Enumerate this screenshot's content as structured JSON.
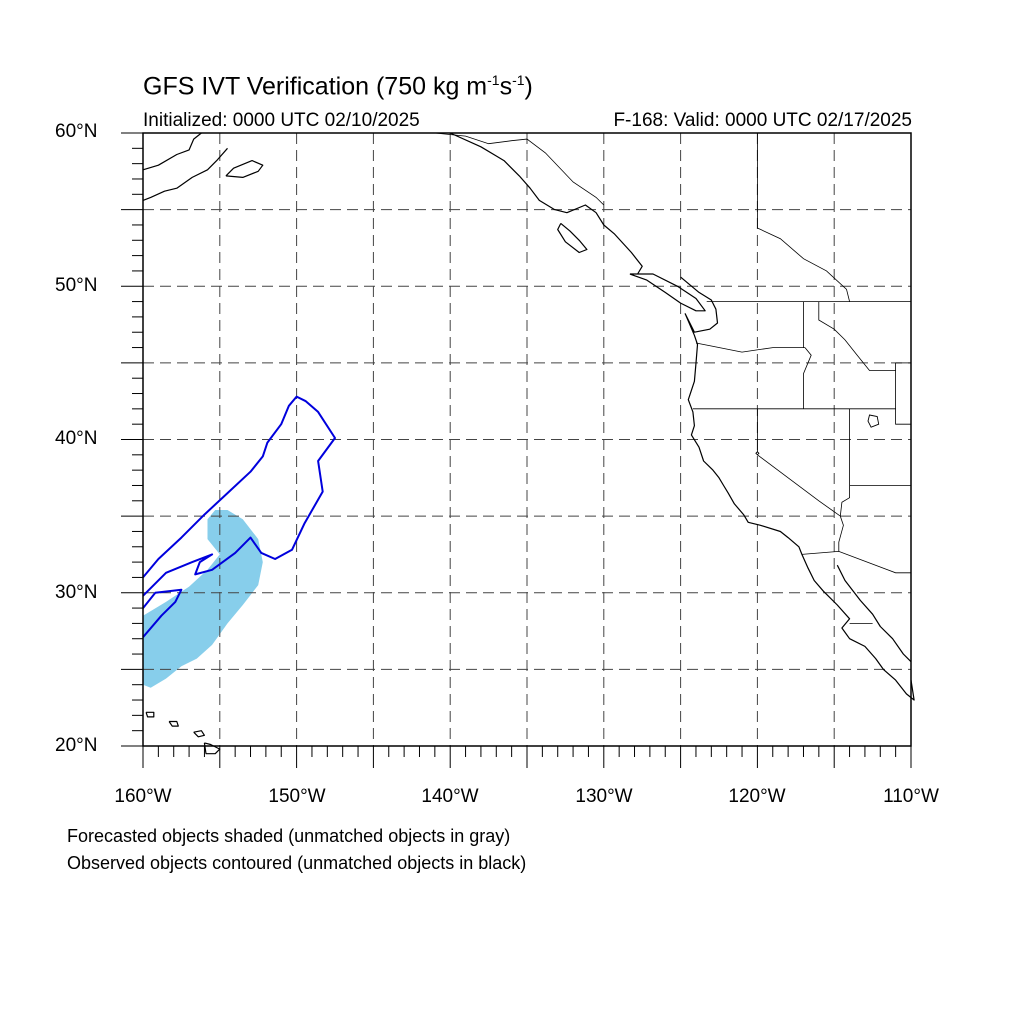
{
  "title": {
    "main": "GFS IVT Verification (750 kg m",
    "exp1": "-1",
    "mid": "s",
    "exp2": "-1",
    "end": ")"
  },
  "subtitle_left": "Initialized: 0000 UTC 02/10/2025",
  "subtitle_right": "F-168: Valid: 0000 UTC 02/17/2025",
  "lat_labels": [
    "60°N",
    "50°N",
    "40°N",
    "30°N",
    "20°N"
  ],
  "lon_labels": [
    "160°W",
    "150°W",
    "140°W",
    "130°W",
    "120°W",
    "110°W"
  ],
  "footer": {
    "line1": "Forecasted objects shaded (unmatched objects in gray)",
    "line2": "Observed objects contoured (unmatched objects in black)"
  },
  "map": {
    "lon_range": [
      -160,
      -110
    ],
    "lat_range": [
      20,
      60
    ],
    "gridline_interval_deg": 5,
    "forecast_color": "#87ceeb",
    "observed_color": "#0000dd",
    "forecast_objects": [
      {
        "name": "forecast-object",
        "points": [
          [
            -160,
            24
          ],
          [
            -159.5,
            23.8
          ],
          [
            -158.5,
            24.4
          ],
          [
            -157.5,
            25.2
          ],
          [
            -156.5,
            25.7
          ],
          [
            -155.5,
            26.6
          ],
          [
            -154.5,
            28.0
          ],
          [
            -153.5,
            29.2
          ],
          [
            -152.5,
            30.5
          ],
          [
            -152.2,
            32.0
          ],
          [
            -152.5,
            33.5
          ],
          [
            -153.5,
            34.8
          ],
          [
            -154.5,
            35.4
          ],
          [
            -155.3,
            35.4
          ],
          [
            -155.8,
            34.8
          ],
          [
            -155.8,
            33.5
          ],
          [
            -155.0,
            32.5
          ],
          [
            -155.8,
            31.5
          ],
          [
            -157.0,
            30.4
          ],
          [
            -158.5,
            29.4
          ],
          [
            -160,
            28.5
          ]
        ]
      }
    ],
    "observed_objects": [
      {
        "name": "observed-outer-contour",
        "points": [
          [
            -160,
            31
          ],
          [
            -159,
            32.2
          ],
          [
            -157.5,
            33.6
          ],
          [
            -156,
            35.1
          ],
          [
            -154.5,
            36.5
          ],
          [
            -153,
            37.9
          ],
          [
            -152.2,
            38.9
          ],
          [
            -151.9,
            39.8
          ],
          [
            -151,
            41.0
          ],
          [
            -150.5,
            42.2
          ],
          [
            -150,
            42.8
          ],
          [
            -149.4,
            42.5
          ],
          [
            -148.6,
            41.8
          ],
          [
            -147.5,
            40.1
          ],
          [
            -148.6,
            38.6
          ],
          [
            -148.3,
            36.6
          ],
          [
            -149.5,
            34.5
          ],
          [
            -150.3,
            32.8
          ],
          [
            -151.4,
            32.2
          ],
          [
            -152.3,
            32.6
          ],
          [
            -153.0,
            33.6
          ],
          [
            -154.0,
            32.6
          ],
          [
            -155.5,
            31.5
          ],
          [
            -156.6,
            31.2
          ],
          [
            -156.3,
            32.0
          ],
          [
            -155.5,
            32.5
          ],
          [
            -156.8,
            32.0
          ],
          [
            -158.5,
            31.3
          ],
          [
            -160,
            29.8
          ]
        ]
      },
      {
        "name": "observed-inner-contour",
        "points": [
          [
            -160,
            29.0
          ],
          [
            -159.2,
            30.0
          ],
          [
            -157.5,
            30.2
          ],
          [
            -157.9,
            29.4
          ],
          [
            -158.8,
            28.5
          ],
          [
            -160,
            27.1
          ]
        ]
      }
    ],
    "coastlines": [
      {
        "name": "alaska-coast",
        "points": [
          [
            -160,
            57.6
          ],
          [
            -159,
            57.9
          ],
          [
            -157.8,
            58.6
          ],
          [
            -157,
            58.9
          ],
          [
            -156.7,
            59.6
          ],
          [
            -156.2,
            60
          ]
        ]
      },
      {
        "name": "alaska-peninsula-coast",
        "points": [
          [
            -160,
            55.6
          ],
          [
            -159.5,
            55.8
          ],
          [
            -158.6,
            56.2
          ],
          [
            -157.8,
            56.4
          ],
          [
            -156.8,
            57.1
          ],
          [
            -155.8,
            57.6
          ],
          [
            -155.2,
            58.2
          ],
          [
            -154.5,
            59.0
          ]
        ]
      },
      {
        "name": "kodiak-island",
        "points": [
          [
            -154.6,
            57.2
          ],
          [
            -153.5,
            57.1
          ],
          [
            -152.5,
            57.5
          ],
          [
            -152.2,
            57.9
          ],
          [
            -152.9,
            58.2
          ],
          [
            -154.1,
            57.7
          ],
          [
            -154.6,
            57.2
          ]
        ]
      },
      {
        "name": "southeast-alaska-coast",
        "points": [
          [
            -140,
            60
          ],
          [
            -138,
            59.1
          ],
          [
            -137,
            58.5
          ],
          [
            -136.5,
            58.2
          ],
          [
            -135.5,
            57.2
          ],
          [
            -134.8,
            56.4
          ],
          [
            -134.2,
            55.6
          ],
          [
            -133.2,
            55.0
          ],
          [
            -132.4,
            54.8
          ],
          [
            -131.2,
            55.3
          ],
          [
            -130.5,
            54.8
          ],
          [
            -130.0,
            54.0
          ],
          [
            -129.3,
            53.4
          ],
          [
            -128.2,
            52.2
          ],
          [
            -127.5,
            51.3
          ],
          [
            -127.8,
            50.8
          ]
        ]
      },
      {
        "name": "haida-gwaii",
        "points": [
          [
            -132.8,
            54.1
          ],
          [
            -132.2,
            53.6
          ],
          [
            -131.6,
            53.0
          ],
          [
            -131.1,
            52.4
          ],
          [
            -131.6,
            52.2
          ],
          [
            -132.5,
            52.9
          ],
          [
            -133.0,
            53.7
          ],
          [
            -132.8,
            54.1
          ]
        ]
      },
      {
        "name": "vancouver-island",
        "points": [
          [
            -128.3,
            50.8
          ],
          [
            -127.2,
            50.4
          ],
          [
            -126.0,
            49.6
          ],
          [
            -125.0,
            48.9
          ],
          [
            -124.0,
            48.4
          ],
          [
            -123.4,
            48.4
          ],
          [
            -124.0,
            49.2
          ],
          [
            -125.2,
            50.0
          ],
          [
            -126.8,
            50.8
          ],
          [
            -128.3,
            50.8
          ]
        ]
      },
      {
        "name": "west-coast",
        "points": [
          [
            -125.0,
            50.6
          ],
          [
            -123.8,
            49.6
          ],
          [
            -123.0,
            49.1
          ],
          [
            -122.7,
            48.5
          ],
          [
            -122.6,
            47.6
          ],
          [
            -123.1,
            47.2
          ],
          [
            -124.1,
            47.0
          ],
          [
            -124.7,
            48.2
          ],
          [
            -124.1,
            46.8
          ],
          [
            -123.9,
            46.2
          ],
          [
            -124.0,
            45.0
          ],
          [
            -124.1,
            43.8
          ],
          [
            -124.5,
            42.6
          ],
          [
            -124.2,
            41.8
          ],
          [
            -124.1,
            40.9
          ],
          [
            -124.3,
            40.3
          ],
          [
            -123.8,
            39.5
          ],
          [
            -123.5,
            38.6
          ],
          [
            -122.9,
            38.0
          ],
          [
            -122.5,
            37.5
          ],
          [
            -122.2,
            37.0
          ],
          [
            -121.9,
            36.5
          ],
          [
            -121.5,
            35.8
          ],
          [
            -120.9,
            35.1
          ],
          [
            -120.6,
            34.6
          ],
          [
            -119.8,
            34.4
          ],
          [
            -118.5,
            34.0
          ],
          [
            -118.0,
            33.6
          ],
          [
            -117.3,
            33.0
          ],
          [
            -117.1,
            32.5
          ],
          [
            -116.7,
            31.6
          ],
          [
            -116.3,
            30.8
          ],
          [
            -115.7,
            30.1
          ],
          [
            -114.8,
            29.2
          ],
          [
            -114.0,
            28.3
          ],
          [
            -114.5,
            27.7
          ],
          [
            -114.0,
            27.0
          ],
          [
            -113.0,
            26.5
          ],
          [
            -112.3,
            25.7
          ],
          [
            -111.8,
            25.0
          ],
          [
            -111.0,
            24.3
          ],
          [
            -110.3,
            23.4
          ],
          [
            -109.8,
            23.0
          ],
          [
            -110.0,
            24.3
          ]
        ]
      },
      {
        "name": "gulf-of-california-coast",
        "points": [
          [
            -114.8,
            31.8
          ],
          [
            -114.3,
            30.8
          ],
          [
            -113.3,
            29.5
          ],
          [
            -112.5,
            28.6
          ],
          [
            -112.0,
            27.8
          ],
          [
            -111.2,
            27.0
          ],
          [
            -110.5,
            26.0
          ],
          [
            -110,
            25.5
          ]
        ]
      },
      {
        "name": "hawaii-big-island",
        "points": [
          [
            -156,
            20.2
          ],
          [
            -155.6,
            20.1
          ],
          [
            -155.0,
            19.8
          ],
          [
            -155.3,
            19.5
          ],
          [
            -155.9,
            19.5
          ],
          [
            -156,
            20.2
          ]
        ]
      },
      {
        "name": "hawaii-maui",
        "points": [
          [
            -156.7,
            20.9
          ],
          [
            -156.2,
            21.0
          ],
          [
            -156.0,
            20.7
          ],
          [
            -156.4,
            20.6
          ],
          [
            -156.7,
            20.9
          ]
        ]
      },
      {
        "name": "hawaii-oahu",
        "points": [
          [
            -158.3,
            21.6
          ],
          [
            -157.8,
            21.6
          ],
          [
            -157.7,
            21.3
          ],
          [
            -158.1,
            21.3
          ],
          [
            -158.3,
            21.6
          ]
        ]
      },
      {
        "name": "hawaii-kauai",
        "points": [
          [
            -159.8,
            22.2
          ],
          [
            -159.3,
            22.2
          ],
          [
            -159.3,
            21.9
          ],
          [
            -159.7,
            21.9
          ],
          [
            -159.8,
            22.2
          ]
        ]
      }
    ],
    "boundaries": [
      {
        "name": "us-canada-border",
        "points": [
          [
            -123.3,
            49.0
          ],
          [
            -110,
            49.0
          ]
        ]
      },
      {
        "name": "alaska-canada-border",
        "points": [
          [
            -141,
            60
          ],
          [
            -139,
            59.8
          ],
          [
            -137.5,
            59.3
          ],
          [
            -136,
            59.5
          ],
          [
            -135,
            59.6
          ],
          [
            -133.8,
            58.7
          ],
          [
            -132,
            56.8
          ],
          [
            -130.5,
            55.8
          ],
          [
            -130,
            55.3
          ]
        ]
      },
      {
        "name": "bc-alberta-border",
        "points": [
          [
            -120,
            60
          ],
          [
            -120,
            53.8
          ],
          [
            -118.5,
            53.1
          ],
          [
            -117.0,
            51.8
          ],
          [
            -115.5,
            51.0
          ],
          [
            -114.2,
            49.8
          ],
          [
            -114.0,
            49.0
          ]
        ]
      },
      {
        "name": "washington-oregon-border",
        "points": [
          [
            -124.0,
            46.3
          ],
          [
            -123.0,
            46.1
          ],
          [
            -121.0,
            45.7
          ],
          [
            -119.0,
            46.0
          ],
          [
            -116.9,
            46.0
          ]
        ]
      },
      {
        "name": "washington-idaho-border",
        "points": [
          [
            -117.0,
            49.0
          ],
          [
            -117.0,
            46.0
          ]
        ]
      },
      {
        "name": "oregon-idaho-border",
        "points": [
          [
            -116.9,
            46.0
          ],
          [
            -116.5,
            45.5
          ],
          [
            -117.0,
            44.3
          ],
          [
            -117.0,
            42.0
          ]
        ]
      },
      {
        "name": "idaho-montana-border",
        "points": [
          [
            -116.0,
            49.0
          ],
          [
            -116.0,
            47.8
          ],
          [
            -115.0,
            47.2
          ],
          [
            -114.3,
            46.5
          ],
          [
            -113.5,
            45.5
          ],
          [
            -112.7,
            44.5
          ],
          [
            -111.0,
            44.5
          ]
        ]
      },
      {
        "name": "northern-42-border",
        "points": [
          [
            -124.2,
            42.0
          ],
          [
            -111.0,
            42.0
          ]
        ]
      },
      {
        "name": "california-nevada-border",
        "points": [
          [
            -120.0,
            42.0
          ],
          [
            -120.0,
            39.0
          ],
          [
            -118.0,
            37.5
          ],
          [
            -116.0,
            36.0
          ],
          [
            -114.6,
            35.0
          ],
          [
            -114.4,
            34.4
          ],
          [
            -114.7,
            33.3
          ],
          [
            -114.7,
            32.7
          ]
        ]
      },
      {
        "name": "nevada-utah-border",
        "points": [
          [
            -114.0,
            42.0
          ],
          [
            -114.0,
            36.2
          ],
          [
            -114.5,
            35.9
          ],
          [
            -114.6,
            35.0
          ]
        ]
      },
      {
        "name": "utah-arizona-border",
        "points": [
          [
            -114.0,
            37.0
          ],
          [
            -110,
            37.0
          ]
        ]
      },
      {
        "name": "wyoming-border",
        "points": [
          [
            -111.0,
            45.0
          ],
          [
            -111.0,
            41.0
          ],
          [
            -110,
            41.0
          ]
        ]
      },
      {
        "name": "montana-wyoming-border",
        "points": [
          [
            -111.0,
            45.0
          ],
          [
            -110,
            45.0
          ]
        ]
      },
      {
        "name": "us-mexico-border",
        "points": [
          [
            -117.1,
            32.5
          ],
          [
            -114.7,
            32.7
          ],
          [
            -111.0,
            31.3
          ],
          [
            -110,
            31.3
          ]
        ]
      },
      {
        "name": "mexico-state-border",
        "points": [
          [
            -114.0,
            28.0
          ],
          [
            -112.5,
            28.0
          ]
        ]
      }
    ],
    "lakes": [
      {
        "name": "great-salt-lake",
        "points": [
          [
            -112.7,
            41.6
          ],
          [
            -112.2,
            41.5
          ],
          [
            -112.1,
            41.0
          ],
          [
            -112.6,
            40.8
          ],
          [
            -112.8,
            41.2
          ],
          [
            -112.7,
            41.6
          ]
        ]
      },
      {
        "name": "lake-tahoe",
        "points": [
          [
            -120.0,
            39.2
          ],
          [
            -119.9,
            39.1
          ],
          [
            -120.0,
            39.0
          ],
          [
            -120.1,
            39.1
          ],
          [
            -120.0,
            39.2
          ]
        ]
      }
    ]
  }
}
